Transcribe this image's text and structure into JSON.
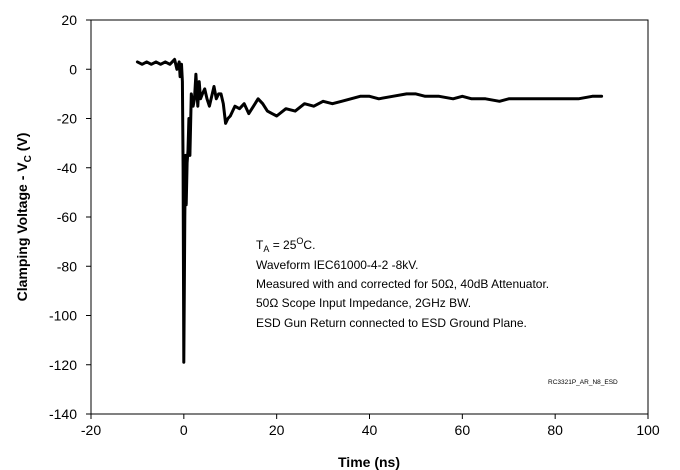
{
  "chart_data": {
    "type": "line",
    "title": "",
    "xlabel": "Time (ns)",
    "ylabel_main": "Clamping Voltage - V",
    "ylabel_sub": "C",
    "ylabel_suffix": " (V)",
    "xlim": [
      -20,
      100
    ],
    "ylim": [
      -140,
      20
    ],
    "xticks": [
      -20,
      0,
      20,
      40,
      60,
      80,
      100
    ],
    "yticks": [
      20,
      0,
      -20,
      -40,
      -60,
      -80,
      -100,
      -120,
      -140
    ],
    "grid": false,
    "series": [
      {
        "color": "#000000",
        "x": [
          -10,
          -9,
          -8,
          -7,
          -6,
          -5,
          -4,
          -3,
          -2,
          -1.5,
          -1,
          -0.8,
          -0.5,
          -0.3,
          -0.15,
          0,
          0.1,
          0.2,
          0.35,
          0.5,
          0.7,
          0.9,
          1.1,
          1.3,
          1.6,
          2.0,
          2.3,
          2.6,
          3.0,
          3.3,
          3.6,
          4.0,
          4.5,
          5.0,
          5.5,
          6.0,
          6.5,
          7.0,
          7.5,
          8.0,
          8.5,
          9.0,
          9.5,
          10.0,
          10.5,
          11.0,
          12.0,
          13.0,
          14.0,
          15.0,
          16.0,
          17.0,
          18.0,
          19.0,
          20.0,
          22.0,
          24.0,
          26.0,
          28.0,
          30.0,
          32.0,
          34.0,
          36.0,
          38.0,
          40.0,
          42.0,
          45.0,
          48.0,
          50.0,
          52.0,
          55.0,
          58.0,
          60.0,
          62.0,
          65.0,
          68.0,
          70.0,
          72.0,
          75.0,
          78.0,
          80.0,
          82.0,
          85.0,
          88.0,
          90.0
        ],
        "y": [
          3,
          2,
          3,
          2,
          3,
          2,
          3,
          2,
          4,
          0,
          3,
          -3,
          2,
          -5,
          -40,
          -119,
          -90,
          -60,
          -35,
          -55,
          -38,
          -33,
          -20,
          -35,
          -10,
          -15,
          -12,
          -2,
          -15,
          -5,
          -12,
          -10,
          -8,
          -12,
          -15,
          -11,
          -7,
          -12,
          -10,
          -10,
          -14,
          -22,
          -20,
          -19,
          -17,
          -15,
          -16,
          -14,
          -18,
          -15,
          -12,
          -14,
          -17,
          -18,
          -19,
          -16,
          -17,
          -14,
          -15,
          -13,
          -14,
          -13,
          -12,
          -11,
          -11,
          -12,
          -11,
          -10,
          -10,
          -11,
          -11,
          -12,
          -11,
          -12,
          -12,
          -13,
          -12,
          -12,
          -12,
          -12,
          -12,
          -12,
          -12,
          -11,
          -11
        ]
      }
    ],
    "annotations": {
      "line1_prefix": "T",
      "line1_sub": "A",
      "line1_mid": " = 25",
      "line1_sup": "O",
      "line1_suffix": "C.",
      "line2": "Waveform IEC61000-4-2 -8kV.",
      "line3": "Measured with and corrected for 50Ω, 40dB Attenuator.",
      "line4": "50Ω Scope Input Impedance, 2GHz BW.",
      "line5": "ESD Gun Return connected to ESD Ground Plane."
    },
    "watermark": "RC3321P_AR_N8_ESD"
  }
}
